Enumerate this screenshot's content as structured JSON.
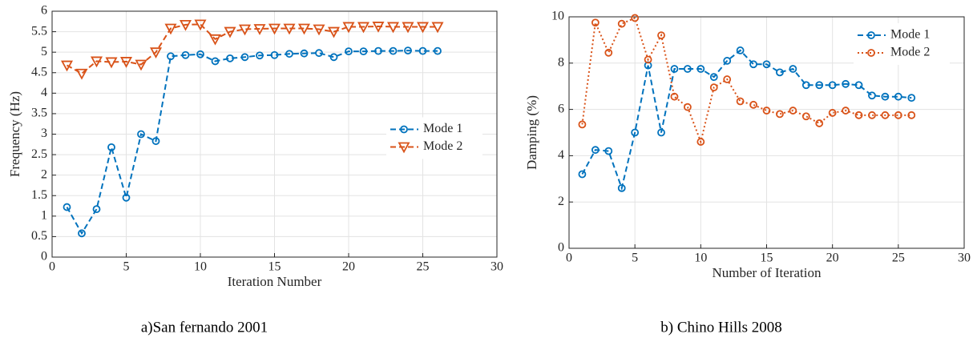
{
  "chart_data": [
    {
      "type": "line",
      "caption": "a)San fernando 2001",
      "xlabel": "Iteration Number",
      "ylabel": "Frequency (Hz)",
      "x": [
        1,
        2,
        3,
        4,
        5,
        6,
        7,
        8,
        9,
        10,
        11,
        12,
        13,
        14,
        15,
        16,
        17,
        18,
        19,
        20,
        21,
        22,
        23,
        24,
        25,
        26
      ],
      "series": [
        {
          "name": "Mode 1",
          "color": "#0072bd",
          "marker": "circle",
          "linestyle": "dashed",
          "values": [
            1.22,
            0.58,
            1.17,
            2.68,
            1.45,
            3.0,
            2.83,
            4.9,
            4.93,
            4.95,
            4.78,
            4.85,
            4.88,
            4.92,
            4.93,
            4.96,
            4.97,
            4.98,
            4.88,
            5.02,
            5.02,
            5.03,
            5.03,
            5.04,
            5.03,
            5.03
          ]
        },
        {
          "name": "Mode 2",
          "color": "#d95319",
          "marker": "triangle-down",
          "linestyle": "dashed",
          "values": [
            4.68,
            4.48,
            4.78,
            4.76,
            4.77,
            4.7,
            5.0,
            5.58,
            5.67,
            5.68,
            5.32,
            5.5,
            5.56,
            5.57,
            5.58,
            5.58,
            5.58,
            5.56,
            5.5,
            5.62,
            5.62,
            5.63,
            5.62,
            5.62,
            5.62,
            5.62
          ]
        }
      ],
      "xlim": [
        0,
        30
      ],
      "xticks": [
        0,
        5,
        10,
        15,
        20,
        25,
        30
      ],
      "ylim": [
        0,
        6
      ],
      "yticks": [
        0,
        0.5,
        1,
        1.5,
        2,
        2.5,
        3,
        3.5,
        4,
        4.5,
        5,
        5.5,
        6
      ],
      "grid": true,
      "legend": "center right"
    },
    {
      "type": "line",
      "caption": "b) Chino Hills 2008",
      "xlabel": "Number of Iteration",
      "ylabel": "Damping (%)",
      "x": [
        1,
        2,
        3,
        4,
        5,
        6,
        7,
        8,
        9,
        10,
        11,
        12,
        13,
        14,
        15,
        16,
        17,
        18,
        19,
        20,
        21,
        22,
        23,
        24,
        25,
        26
      ],
      "series": [
        {
          "name": "Mode 1",
          "color": "#0072bd",
          "marker": "circle",
          "linestyle": "dashed",
          "values": [
            3.2,
            4.25,
            4.2,
            2.6,
            5.0,
            7.9,
            5.0,
            7.75,
            7.75,
            7.75,
            7.4,
            8.1,
            8.55,
            7.95,
            7.95,
            7.6,
            7.75,
            7.05,
            7.05,
            7.05,
            7.1,
            7.05,
            6.6,
            6.55,
            6.55,
            6.5
          ]
        },
        {
          "name": "Mode 2",
          "color": "#d95319",
          "marker": "circle",
          "linestyle": "dotted",
          "values": [
            5.35,
            9.75,
            8.45,
            9.7,
            9.95,
            8.15,
            9.2,
            6.55,
            6.1,
            4.6,
            6.95,
            7.3,
            6.35,
            6.2,
            5.95,
            5.8,
            5.95,
            5.7,
            5.4,
            5.85,
            5.95,
            5.75,
            5.75,
            5.75,
            5.75,
            5.75
          ]
        }
      ],
      "xlim": [
        0,
        30
      ],
      "xticks": [
        0,
        5,
        10,
        15,
        20,
        25,
        30
      ],
      "ylim": [
        0,
        10
      ],
      "yticks": [
        0,
        2,
        4,
        6,
        8,
        10
      ],
      "grid": true,
      "legend": "upper right"
    }
  ]
}
